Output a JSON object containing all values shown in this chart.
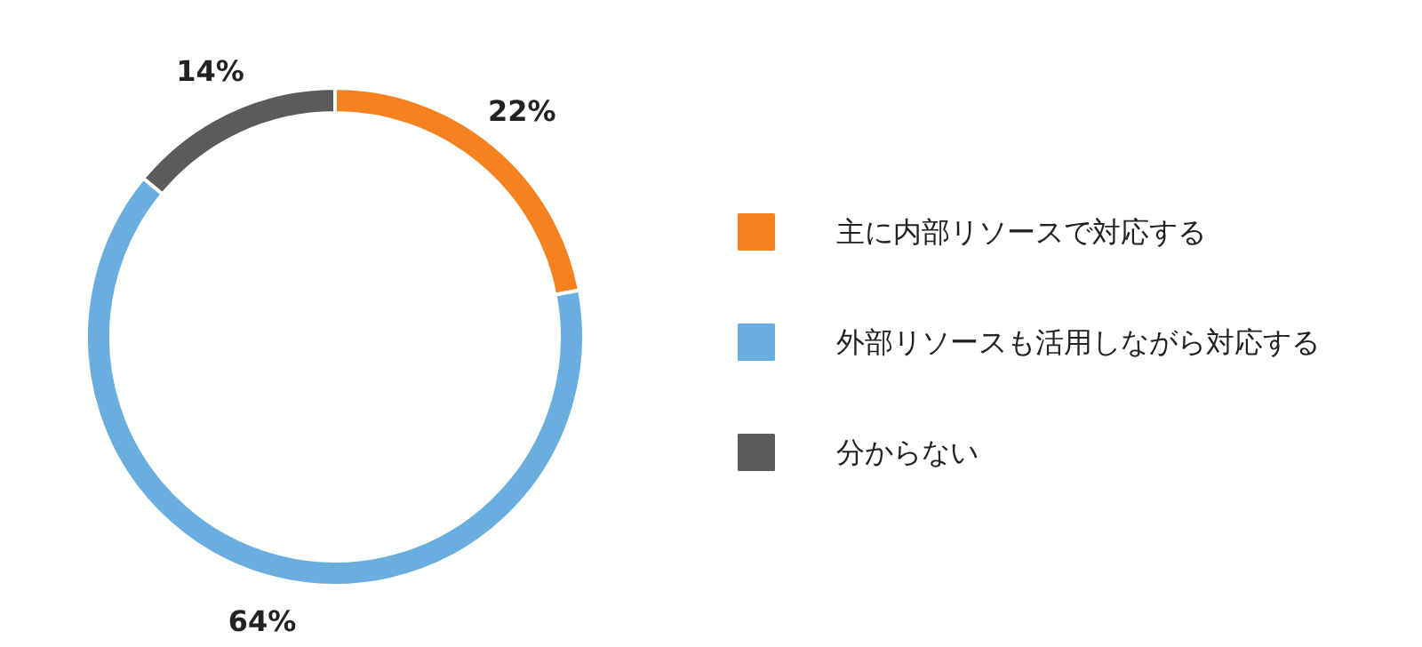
{
  "chart_data": {
    "type": "donut",
    "categories": [
      "主に内部リソースで対応する",
      "外部リソースも活用しながら対応する",
      "分からない"
    ],
    "values": [
      22,
      64,
      14
    ],
    "colors": [
      "#f5821f",
      "#6aaee0",
      "#5a5b5d"
    ],
    "value_labels": [
      "22%",
      "64%",
      "14%"
    ],
    "legend": "right"
  }
}
